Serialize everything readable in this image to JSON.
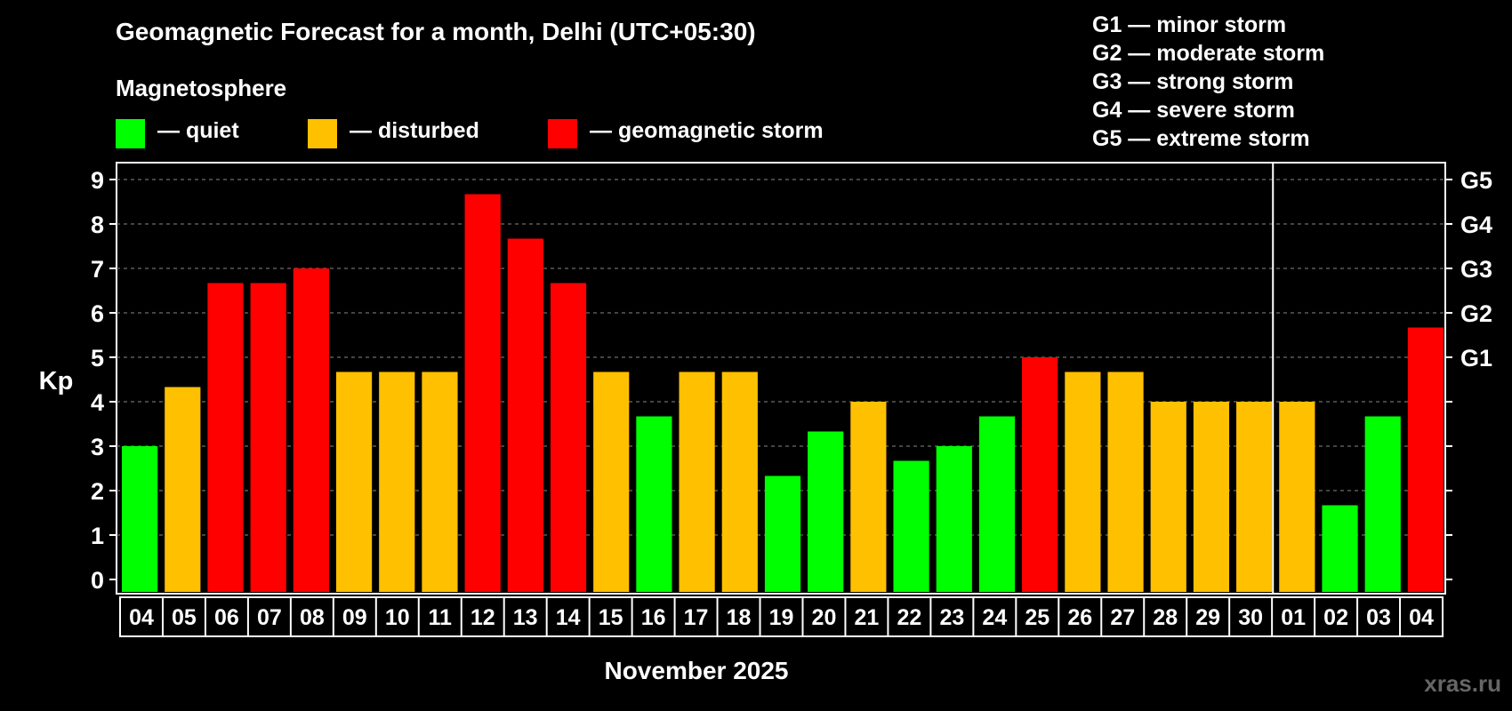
{
  "title": "Geomagnetic Forecast for a month, Delhi (UTC+05:30)",
  "legend": {
    "heading": "Magnetosphere",
    "items": [
      {
        "label": "— quiet",
        "color": "#00ff00"
      },
      {
        "label": "— disturbed",
        "color": "#ffc000"
      },
      {
        "label": "— geomagnetic storm",
        "color": "#ff0000"
      }
    ]
  },
  "g_scale": [
    "G1 — minor storm",
    "G2 — moderate storm",
    "G3 — strong storm",
    "G4 — severe storm",
    "G5 — extreme storm"
  ],
  "watermark": "xras.ru",
  "colors": {
    "quiet": "#00ff00",
    "disturbed": "#ffc000",
    "storm": "#ff0000",
    "grid": "#888888"
  },
  "chart_data": {
    "type": "bar",
    "title": "Geomagnetic Forecast for a month, Delhi (UTC+05:30)",
    "xlabel": "November 2025",
    "ylabel": "Kp",
    "ylim": [
      0,
      9
    ],
    "yticks": [
      "0",
      "1",
      "2",
      "3",
      "4",
      "5",
      "6",
      "7",
      "8",
      "9"
    ],
    "right_ticks": [
      {
        "value": 5,
        "label": "G1"
      },
      {
        "value": 6,
        "label": "G2"
      },
      {
        "value": 7,
        "label": "G3"
      },
      {
        "value": 8,
        "label": "G4"
      },
      {
        "value": 9,
        "label": "G5"
      }
    ],
    "categories": [
      "04",
      "05",
      "06",
      "07",
      "08",
      "09",
      "10",
      "11",
      "12",
      "13",
      "14",
      "15",
      "16",
      "17",
      "18",
      "19",
      "20",
      "21",
      "22",
      "23",
      "24",
      "25",
      "26",
      "27",
      "28",
      "29",
      "30",
      "01",
      "02",
      "03",
      "04"
    ],
    "values": [
      3.0,
      4.33,
      6.67,
      6.67,
      7.0,
      4.67,
      4.67,
      4.67,
      8.67,
      7.67,
      6.67,
      4.67,
      3.67,
      4.67,
      4.67,
      2.33,
      3.33,
      4.0,
      2.67,
      3.0,
      3.67,
      5.0,
      4.67,
      4.67,
      4.0,
      4.0,
      4.0,
      4.0,
      1.67,
      3.67,
      5.67
    ],
    "status": [
      "quiet",
      "disturbed",
      "storm",
      "storm",
      "storm",
      "disturbed",
      "disturbed",
      "disturbed",
      "storm",
      "storm",
      "storm",
      "disturbed",
      "quiet",
      "disturbed",
      "disturbed",
      "quiet",
      "quiet",
      "disturbed",
      "quiet",
      "quiet",
      "quiet",
      "storm",
      "disturbed",
      "disturbed",
      "disturbed",
      "disturbed",
      "disturbed",
      "disturbed",
      "quiet",
      "quiet",
      "storm"
    ],
    "month_boundary_index": 27,
    "grid": true
  }
}
